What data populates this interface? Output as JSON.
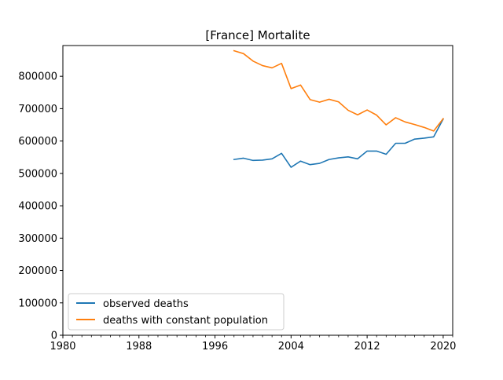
{
  "chart_data": {
    "type": "line",
    "title": "[France] Mortalite",
    "xlabel": "",
    "ylabel": "",
    "xlim": [
      1980,
      2021
    ],
    "ylim": [
      0,
      895000
    ],
    "x_major_ticks": [
      1980,
      1988,
      1996,
      2004,
      2012,
      2020
    ],
    "x_tick_labels": [
      "1980",
      "1988",
      "1996",
      "2004",
      "2012",
      "2020"
    ],
    "y_ticks": [
      0,
      100000,
      200000,
      300000,
      400000,
      500000,
      600000,
      700000,
      800000
    ],
    "y_tick_labels": [
      "0",
      "100000",
      "200000",
      "300000",
      "400000",
      "500000",
      "600000",
      "700000",
      "800000"
    ],
    "grid": false,
    "legend_position": "lower-left",
    "x": [
      1998,
      1999,
      2000,
      2001,
      2002,
      2003,
      2004,
      2005,
      2006,
      2007,
      2008,
      2009,
      2010,
      2011,
      2012,
      2013,
      2014,
      2015,
      2016,
      2017,
      2018,
      2019,
      2020
    ],
    "series": [
      {
        "name": "observed deaths",
        "color": "#1f77b4",
        "values": [
          543000,
          547000,
          540000,
          541000,
          545000,
          562000,
          519000,
          538000,
          527000,
          531000,
          543000,
          548000,
          551000,
          545000,
          569000,
          569000,
          559000,
          593000,
          593000,
          606000,
          609000,
          613000,
          668000
        ]
      },
      {
        "name": "deaths with constant population",
        "color": "#ff7f0e",
        "values": [
          879000,
          870000,
          847000,
          833000,
          826000,
          840000,
          762000,
          773000,
          728000,
          720000,
          729000,
          721000,
          695000,
          681000,
          696000,
          680000,
          650000,
          672000,
          659000,
          651000,
          642000,
          631000,
          669000
        ]
      }
    ]
  }
}
